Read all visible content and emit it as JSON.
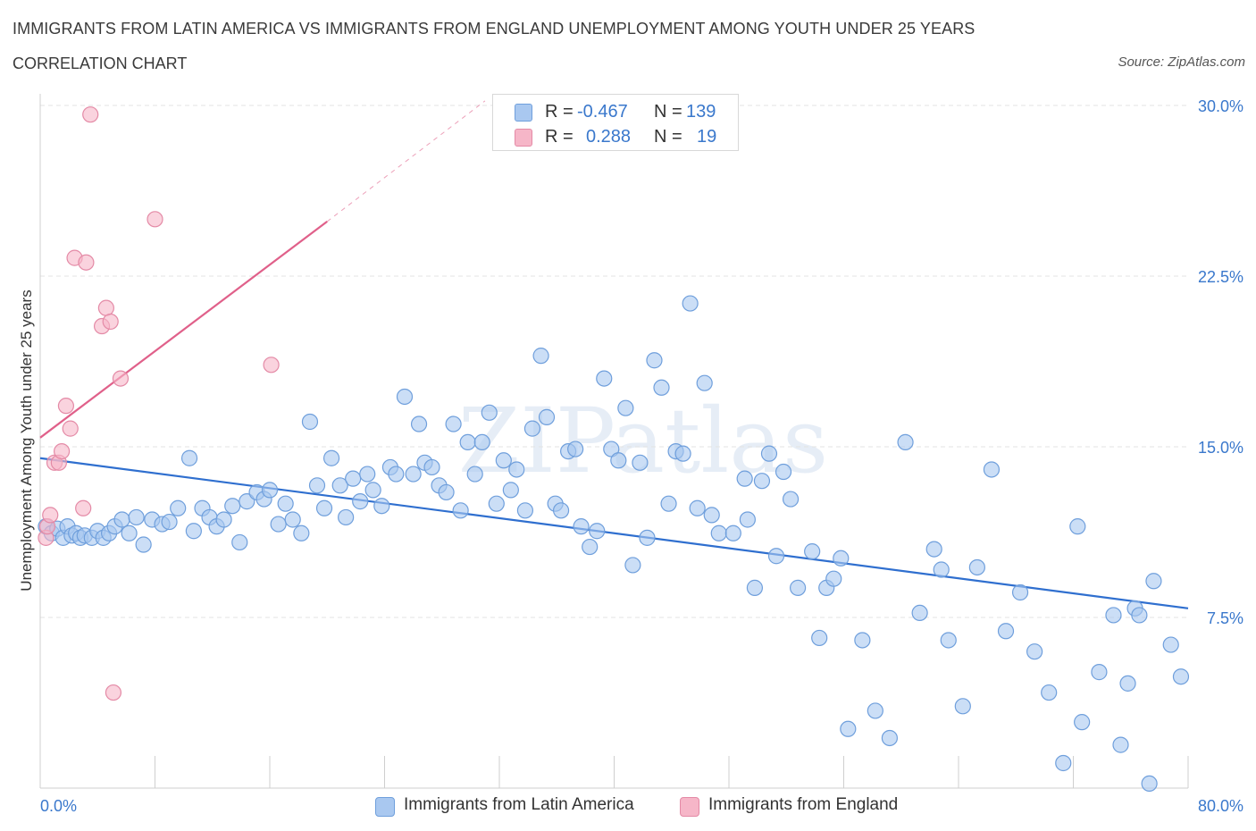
{
  "header": {
    "title": "IMMIGRANTS FROM LATIN AMERICA VS IMMIGRANTS FROM ENGLAND UNEMPLOYMENT AMONG YOUTH UNDER 25 YEARS",
    "subtitle": "CORRELATION CHART",
    "source": "Source: ZipAtlas.com",
    "watermark": "ZIPatlas"
  },
  "stats_legend": {
    "rows": [
      {
        "r_label": "R =",
        "r_value": "-0.467",
        "n_label": "N =",
        "n_value": "139",
        "color": "#a9c8f0"
      },
      {
        "r_label": "R =",
        "r_value": "0.288",
        "n_label": "N =",
        "n_value": "19",
        "color": "#f6b6c8"
      }
    ]
  },
  "bottom_legend": [
    {
      "label": "Immigrants from Latin America",
      "color": "#a9c8f0"
    },
    {
      "label": "Immigrants from England",
      "color": "#f6b6c8"
    }
  ],
  "colors": {
    "blue_fill": "#a9c8f0",
    "blue_stroke": "#6f9fdc",
    "blue_line": "#2f6fcf",
    "pink_fill": "#f6b6c8",
    "pink_stroke": "#e48aa6",
    "pink_line": "#e0608a",
    "tick_label": "#3a78cc",
    "grid": "#e3e3e3"
  },
  "chart_data": {
    "type": "scatter",
    "title": "IMMIGRANTS FROM LATIN AMERICA VS IMMIGRANTS FROM ENGLAND UNEMPLOYMENT AMONG YOUTH UNDER 25 YEARS",
    "subtitle": "CORRELATION CHART",
    "xlabel": "",
    "ylabel": "Unemployment Among Youth under 25 years",
    "xlim": [
      0,
      80
    ],
    "ylim": [
      0,
      30
    ],
    "x_tick_labels": [
      "0.0%",
      "80.0%"
    ],
    "y_ticks": [
      7.5,
      15.0,
      22.5,
      30.0
    ],
    "y_tick_labels": [
      "7.5%",
      "15.0%",
      "22.5%",
      "30.0%"
    ],
    "grid": "horizontal dashed",
    "legend_position": "top-center",
    "series": [
      {
        "name": "Immigrants from Latin America",
        "color": "#a9c8f0",
        "stats": {
          "R": -0.467,
          "N": 139
        },
        "trend": {
          "x": [
            0,
            80
          ],
          "y": [
            14.5,
            7.9
          ]
        },
        "points": [
          [
            0.4,
            11.5
          ],
          [
            0.8,
            11.2
          ],
          [
            1.2,
            11.4
          ],
          [
            1.6,
            11.0
          ],
          [
            1.9,
            11.5
          ],
          [
            2.2,
            11.1
          ],
          [
            2.5,
            11.2
          ],
          [
            2.8,
            11.0
          ],
          [
            3.1,
            11.1
          ],
          [
            3.6,
            11.0
          ],
          [
            4.0,
            11.3
          ],
          [
            4.4,
            11.0
          ],
          [
            4.8,
            11.2
          ],
          [
            5.2,
            11.5
          ],
          [
            5.7,
            11.8
          ],
          [
            6.2,
            11.2
          ],
          [
            6.7,
            11.9
          ],
          [
            7.2,
            10.7
          ],
          [
            7.8,
            11.8
          ],
          [
            8.5,
            11.6
          ],
          [
            9.0,
            11.7
          ],
          [
            9.6,
            12.3
          ],
          [
            10.4,
            14.5
          ],
          [
            10.7,
            11.3
          ],
          [
            11.3,
            12.3
          ],
          [
            11.8,
            11.9
          ],
          [
            12.3,
            11.5
          ],
          [
            12.8,
            11.8
          ],
          [
            13.4,
            12.4
          ],
          [
            13.9,
            10.8
          ],
          [
            14.4,
            12.6
          ],
          [
            15.1,
            13.0
          ],
          [
            15.6,
            12.7
          ],
          [
            16.0,
            13.1
          ],
          [
            16.6,
            11.6
          ],
          [
            17.1,
            12.5
          ],
          [
            17.6,
            11.8
          ],
          [
            18.2,
            11.2
          ],
          [
            18.8,
            16.1
          ],
          [
            19.3,
            13.3
          ],
          [
            19.8,
            12.3
          ],
          [
            20.3,
            14.5
          ],
          [
            20.9,
            13.3
          ],
          [
            21.3,
            11.9
          ],
          [
            21.8,
            13.6
          ],
          [
            22.3,
            12.6
          ],
          [
            22.8,
            13.8
          ],
          [
            23.2,
            13.1
          ],
          [
            23.8,
            12.4
          ],
          [
            24.4,
            14.1
          ],
          [
            24.8,
            13.8
          ],
          [
            25.4,
            17.2
          ],
          [
            26.0,
            13.8
          ],
          [
            26.4,
            16.0
          ],
          [
            26.8,
            14.3
          ],
          [
            27.3,
            14.1
          ],
          [
            27.8,
            13.3
          ],
          [
            28.3,
            13.0
          ],
          [
            28.8,
            16.0
          ],
          [
            29.3,
            12.2
          ],
          [
            29.8,
            15.2
          ],
          [
            30.3,
            13.8
          ],
          [
            30.8,
            15.2
          ],
          [
            31.3,
            16.5
          ],
          [
            31.8,
            12.5
          ],
          [
            32.3,
            14.4
          ],
          [
            32.8,
            13.1
          ],
          [
            33.2,
            14.0
          ],
          [
            33.8,
            12.2
          ],
          [
            34.3,
            15.8
          ],
          [
            34.9,
            19.0
          ],
          [
            35.3,
            16.3
          ],
          [
            35.9,
            12.5
          ],
          [
            36.3,
            12.2
          ],
          [
            36.8,
            14.8
          ],
          [
            37.3,
            14.9
          ],
          [
            37.7,
            11.5
          ],
          [
            38.3,
            10.6
          ],
          [
            38.8,
            11.3
          ],
          [
            39.3,
            18.0
          ],
          [
            39.8,
            14.9
          ],
          [
            40.3,
            14.4
          ],
          [
            40.8,
            16.7
          ],
          [
            41.3,
            9.8
          ],
          [
            41.8,
            14.3
          ],
          [
            42.3,
            11.0
          ],
          [
            42.8,
            18.8
          ],
          [
            43.3,
            17.6
          ],
          [
            43.8,
            12.5
          ],
          [
            44.3,
            14.8
          ],
          [
            44.8,
            14.7
          ],
          [
            45.3,
            21.3
          ],
          [
            45.8,
            12.3
          ],
          [
            46.3,
            17.8
          ],
          [
            46.8,
            12.0
          ],
          [
            47.3,
            11.2
          ],
          [
            48.3,
            11.2
          ],
          [
            49.1,
            13.6
          ],
          [
            49.3,
            11.8
          ],
          [
            49.8,
            8.8
          ],
          [
            50.3,
            13.5
          ],
          [
            50.8,
            14.7
          ],
          [
            51.3,
            10.2
          ],
          [
            51.8,
            13.9
          ],
          [
            52.3,
            12.7
          ],
          [
            52.8,
            8.8
          ],
          [
            53.8,
            10.4
          ],
          [
            54.3,
            6.6
          ],
          [
            54.8,
            8.8
          ],
          [
            55.3,
            9.2
          ],
          [
            55.8,
            10.1
          ],
          [
            56.3,
            2.6
          ],
          [
            57.3,
            6.5
          ],
          [
            58.2,
            3.4
          ],
          [
            59.2,
            2.2
          ],
          [
            60.3,
            15.2
          ],
          [
            61.3,
            7.7
          ],
          [
            62.3,
            10.5
          ],
          [
            62.8,
            9.6
          ],
          [
            63.3,
            6.5
          ],
          [
            64.3,
            3.6
          ],
          [
            65.3,
            9.7
          ],
          [
            66.3,
            14.0
          ],
          [
            67.3,
            6.9
          ],
          [
            68.3,
            8.6
          ],
          [
            69.3,
            6.0
          ],
          [
            70.3,
            4.2
          ],
          [
            71.3,
            1.1
          ],
          [
            72.3,
            11.5
          ],
          [
            72.6,
            2.9
          ],
          [
            73.8,
            5.1
          ],
          [
            74.8,
            7.6
          ],
          [
            75.3,
            1.9
          ],
          [
            75.8,
            4.6
          ],
          [
            76.3,
            7.9
          ],
          [
            76.6,
            7.6
          ],
          [
            77.3,
            0.2
          ],
          [
            77.6,
            9.1
          ],
          [
            78.8,
            6.3
          ],
          [
            79.5,
            4.9
          ]
        ]
      },
      {
        "name": "Immigrants from England",
        "color": "#f6b6c8",
        "stats": {
          "R": 0.288,
          "N": 19
        },
        "trend": {
          "x": [
            0,
            20
          ],
          "y": [
            15.4,
            24.9
          ],
          "dashed_extension": {
            "x": [
              20,
              31
            ],
            "y": [
              24.9,
              30.2
            ]
          }
        },
        "points": [
          [
            0.4,
            11.0
          ],
          [
            0.5,
            11.5
          ],
          [
            0.7,
            12.0
          ],
          [
            1.0,
            14.3
          ],
          [
            1.3,
            14.3
          ],
          [
            1.5,
            14.8
          ],
          [
            1.8,
            16.8
          ],
          [
            2.1,
            15.8
          ],
          [
            2.4,
            23.3
          ],
          [
            3.0,
            12.3
          ],
          [
            3.2,
            23.1
          ],
          [
            3.5,
            29.6
          ],
          [
            4.3,
            20.3
          ],
          [
            4.6,
            21.1
          ],
          [
            4.9,
            20.5
          ],
          [
            5.1,
            4.2
          ],
          [
            5.6,
            18.0
          ],
          [
            8.0,
            25.0
          ],
          [
            16.1,
            18.6
          ]
        ]
      }
    ]
  }
}
